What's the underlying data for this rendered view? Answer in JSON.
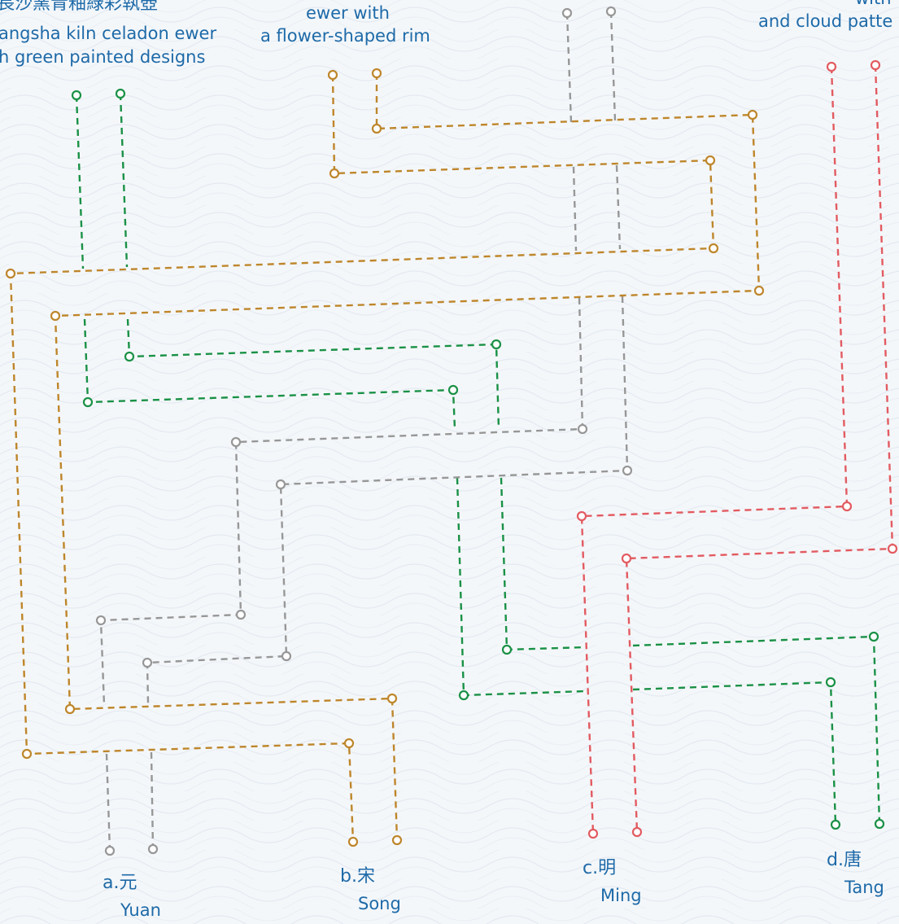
{
  "colors": {
    "green": "#1a9146",
    "brown": "#be862b",
    "gray": "#979797",
    "red": "#e25b61",
    "text": "#1e6aa8"
  },
  "top_labels": {
    "left": {
      "zh": "長沙窯青釉綠彩執壺",
      "en_line1": "angsha kiln celadon ewer",
      "en_line2": "h green painted designs"
    },
    "middle": {
      "line1": "ewer with",
      "line2": "a flower-shaped rim"
    },
    "right": {
      "line1": "with ",
      "line2": "and cloud patte"
    }
  },
  "answers": [
    {
      "letter_zh": "a.元",
      "en": "Yuan"
    },
    {
      "letter_zh": "b.宋",
      "en": "Song"
    },
    {
      "letter_zh": "c.明",
      "en": "Ming"
    },
    {
      "letter_zh": "d.唐",
      "en": "Tang"
    }
  ]
}
